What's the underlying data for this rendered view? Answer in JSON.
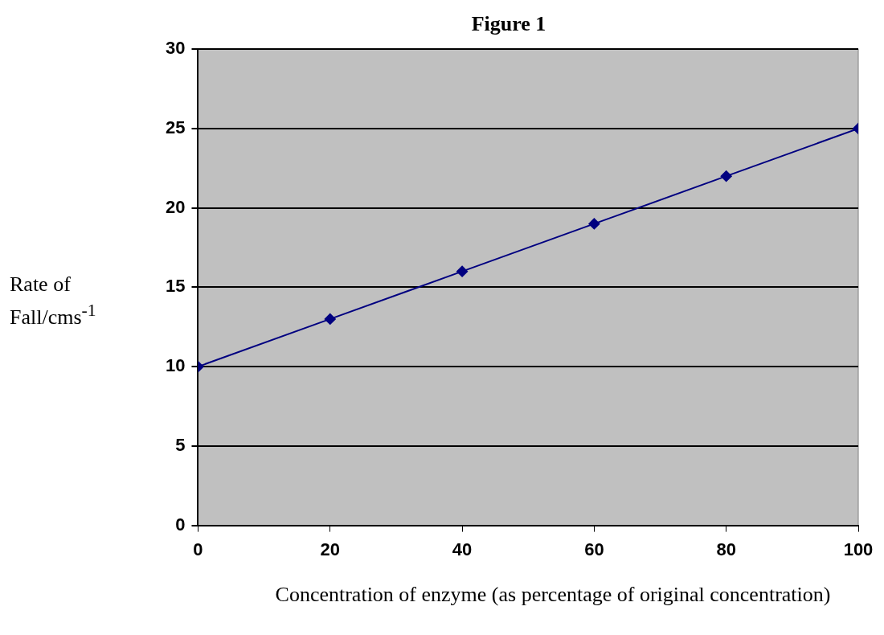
{
  "chart_data": {
    "type": "line",
    "title": "Figure 1",
    "xlabel": "Concentration of enzyme (as percentage of original concentration)",
    "ylabel": "Rate of Fall/cms$^{-1}$",
    "x": [
      0,
      20,
      40,
      60,
      80,
      100
    ],
    "series": [
      {
        "color": "#000080",
        "values": [
          10,
          13,
          16,
          19,
          22,
          25
        ]
      }
    ],
    "xlim": [
      0,
      100
    ],
    "xticks": [
      0,
      20,
      40,
      60,
      80,
      100
    ],
    "ylim": [
      0,
      30
    ],
    "yticks": [
      0,
      5,
      10,
      15,
      20,
      25,
      30
    ],
    "grid": "y",
    "legend": false,
    "marker": "diamond",
    "line_style": "solid"
  }
}
